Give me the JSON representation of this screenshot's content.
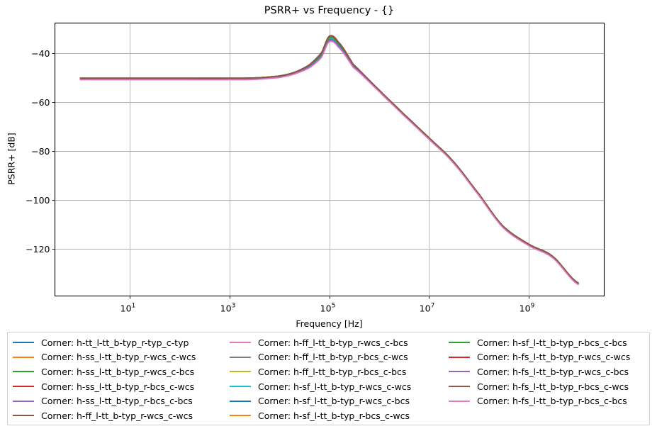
{
  "chart_data": {
    "type": "line",
    "title": "PSRR+ vs Frequency - {}",
    "xlabel": "Frequency [Hz]",
    "ylabel": "PSRR+ [dB]",
    "xscale": "log",
    "xlim": [
      0.3,
      30000000000
    ],
    "ylim": [
      -139,
      -27.5
    ],
    "grid": true,
    "legend_position": "below plot, 3 columns",
    "x_ticks": [
      {
        "value": 10,
        "label": "10^1",
        "base": "10",
        "exp": "1"
      },
      {
        "value": 1000,
        "label": "10^3",
        "base": "10",
        "exp": "3"
      },
      {
        "value": 100000,
        "label": "10^5",
        "base": "10",
        "exp": "5"
      },
      {
        "value": 10000000,
        "label": "10^7",
        "base": "10",
        "exp": "7"
      },
      {
        "value": 1000000000,
        "label": "10^9",
        "base": "10",
        "exp": "9"
      }
    ],
    "y_ticks": [
      {
        "value": -40,
        "label": "−40"
      },
      {
        "value": -60,
        "label": "−60"
      },
      {
        "value": -80,
        "label": "−80"
      },
      {
        "value": -100,
        "label": "−100"
      },
      {
        "value": -120,
        "label": "−120"
      }
    ],
    "x": [
      1,
      10,
      100,
      1000,
      3000,
      10000,
      20000,
      40000,
      70000,
      100000,
      150000,
      300000,
      1000000,
      3000000,
      10000000,
      30000000,
      100000000,
      300000000,
      1000000000,
      3000000000,
      10000000000
    ],
    "series": [
      {
        "name": "Corner: h-tt_l-tt_b-typ_r-typ_c-typ",
        "color": "#1f77b4",
        "offset": -0.6,
        "peak_offset": -1.2
      },
      {
        "name": "Corner: h-ss_l-tt_b-typ_r-wcs_c-wcs",
        "color": "#ff7f0e",
        "offset": 0.0,
        "peak_offset": 0.0
      },
      {
        "name": "Corner: h-ss_l-tt_b-typ_r-wcs_c-bcs",
        "color": "#2ca02c",
        "offset": 0.0,
        "peak_offset": -0.6
      },
      {
        "name": "Corner: h-ss_l-tt_b-typ_r-bcs_c-wcs",
        "color": "#d62728",
        "offset": 0.0,
        "peak_offset": 0.2
      },
      {
        "name": "Corner: h-ss_l-tt_b-typ_r-bcs_c-bcs",
        "color": "#9467bd",
        "offset": -0.4,
        "peak_offset": -0.8
      },
      {
        "name": "Corner: h-ff_l-tt_b-typ_r-wcs_c-wcs",
        "color": "#8c564b",
        "offset": 0.0,
        "peak_offset": 0.3
      },
      {
        "name": "Corner: h-ff_l-tt_b-typ_r-wcs_c-bcs",
        "color": "#e377c2",
        "offset": -0.6,
        "peak_offset": -2.0
      },
      {
        "name": "Corner: h-ff_l-tt_b-typ_r-bcs_c-wcs",
        "color": "#7f7f7f",
        "offset": -0.2,
        "peak_offset": -0.4
      },
      {
        "name": "Corner: h-ff_l-tt_b-typ_r-bcs_c-bcs",
        "color": "#bcbd22",
        "offset": -0.2,
        "peak_offset": -0.7
      },
      {
        "name": "Corner: h-sf_l-tt_b-typ_r-wcs_c-wcs",
        "color": "#17becf",
        "offset": -0.3,
        "peak_offset": -1.0
      },
      {
        "name": "Corner: h-sf_l-tt_b-typ_r-wcs_c-bcs",
        "color": "#1f77b4",
        "offset": -0.5,
        "peak_offset": -1.4
      },
      {
        "name": "Corner: h-sf_l-tt_b-typ_r-bcs_c-wcs",
        "color": "#ff7f0e",
        "offset": -0.1,
        "peak_offset": -0.2
      },
      {
        "name": "Corner: h-sf_l-tt_b-typ_r-bcs_c-bcs",
        "color": "#2ca02c",
        "offset": 0.0,
        "peak_offset": -0.5
      },
      {
        "name": "Corner: h-fs_l-tt_b-typ_r-wcs_c-wcs",
        "color": "#d62728",
        "offset": -0.1,
        "peak_offset": 0.1
      },
      {
        "name": "Corner: h-fs_l-tt_b-typ_r-wcs_c-bcs",
        "color": "#9467bd",
        "offset": -0.5,
        "peak_offset": -1.6
      },
      {
        "name": "Corner: h-fs_l-tt_b-typ_r-bcs_c-wcs",
        "color": "#8c564b",
        "offset": -0.1,
        "peak_offset": 0.2
      },
      {
        "name": "Corner: h-fs_l-tt_b-typ_r-bcs_c-bcs",
        "color": "#e377c2",
        "offset": -0.7,
        "peak_offset": -2.1
      }
    ],
    "base_values": [
      -50.2,
      -50.2,
      -50.2,
      -50.2,
      -50.1,
      -49.3,
      -47.8,
      -44.8,
      -40.0,
      -33.3,
      -35.5,
      -44.5,
      -55.0,
      -64.5,
      -74.5,
      -84.0,
      -97.5,
      -110.5,
      -118.0,
      -123.0,
      -134.0
    ]
  }
}
